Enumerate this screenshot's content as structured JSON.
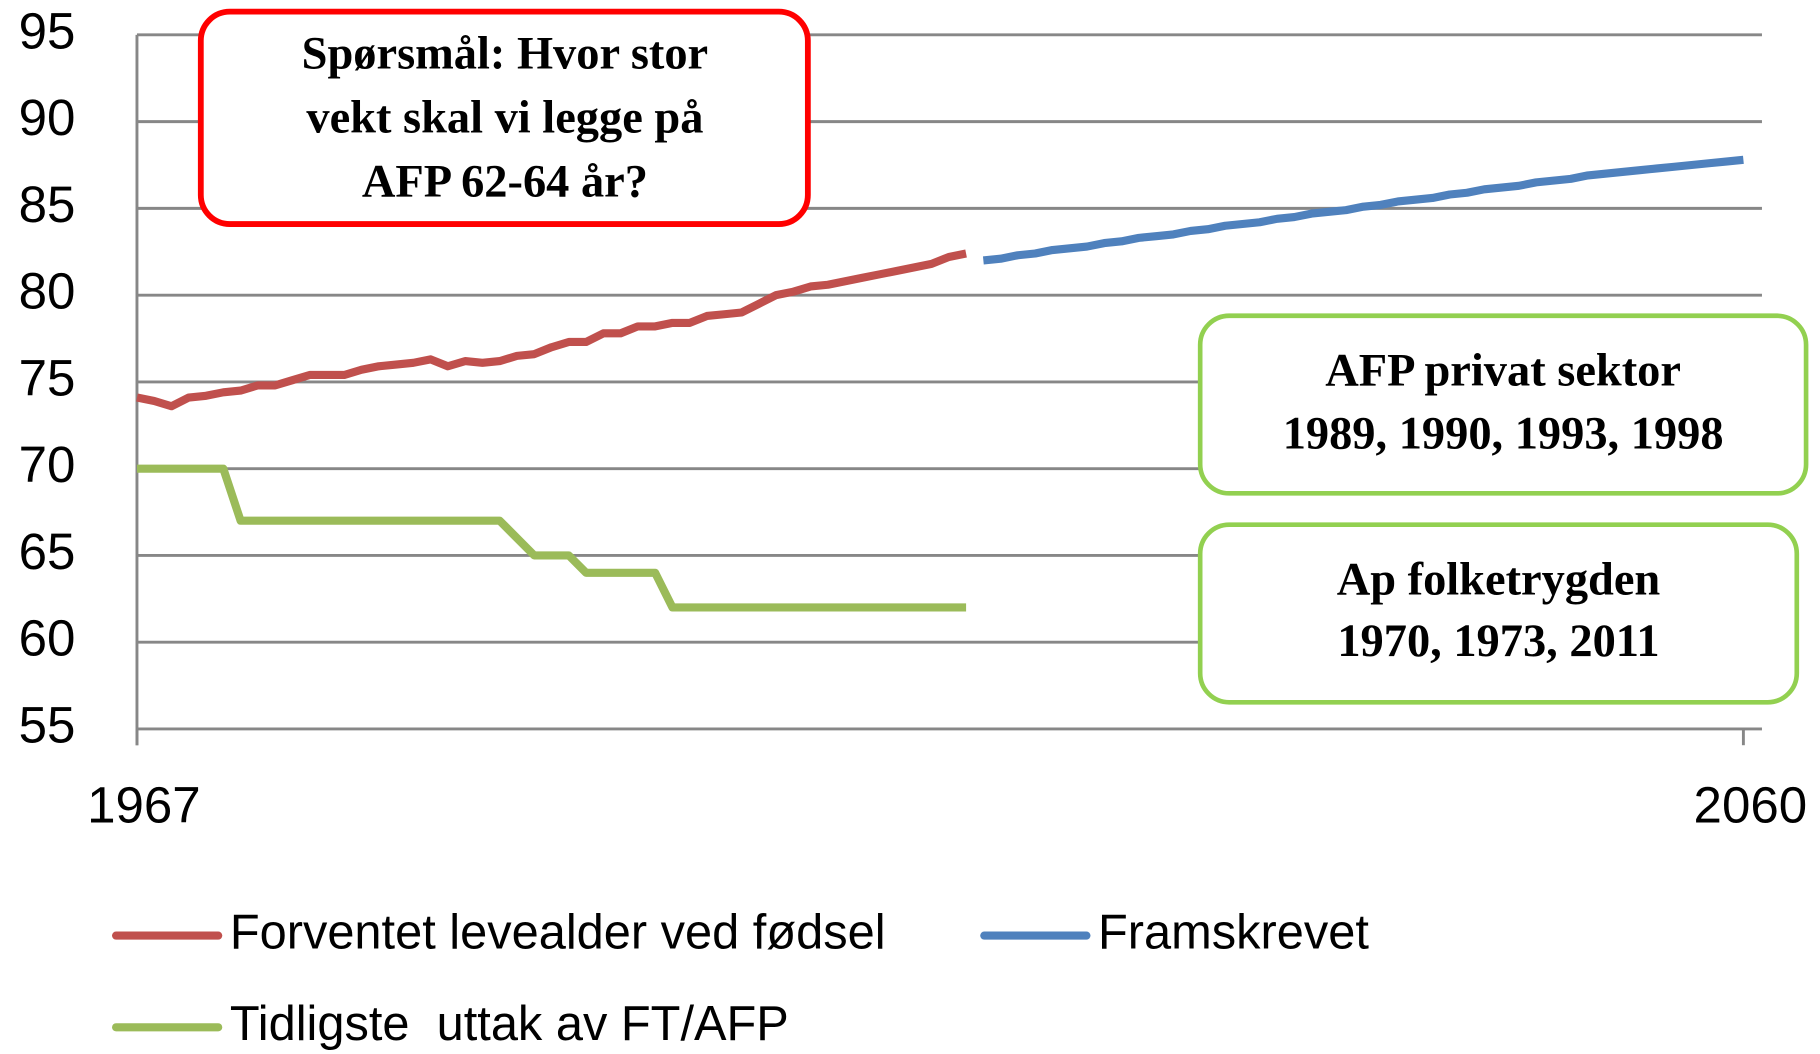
{
  "chart_data": {
    "type": "line",
    "xlim": [
      1967,
      2060
    ],
    "xticks": [
      1967,
      2060
    ],
    "ylim": [
      55,
      95
    ],
    "yticks": [
      55,
      60,
      65,
      70,
      75,
      80,
      85,
      90,
      95
    ],
    "grid": true,
    "legend": "bottom",
    "series": [
      {
        "name": "Forventet levealder ved fødsel",
        "color": "#c0504d",
        "x": [
          1967,
          1968,
          1969,
          1970,
          1971,
          1972,
          1973,
          1974,
          1975,
          1976,
          1977,
          1978,
          1979,
          1980,
          1981,
          1982,
          1983,
          1984,
          1985,
          1986,
          1987,
          1988,
          1989,
          1990,
          1991,
          1992,
          1993,
          1994,
          1995,
          1996,
          1997,
          1998,
          1999,
          2000,
          2001,
          2002,
          2003,
          2004,
          2005,
          2006,
          2007,
          2008,
          2009,
          2010,
          2011,
          2012,
          2013,
          2014,
          2015
        ],
        "values": [
          74.1,
          73.9,
          73.6,
          74.1,
          74.2,
          74.4,
          74.5,
          74.8,
          74.8,
          75.1,
          75.4,
          75.4,
          75.4,
          75.7,
          75.9,
          76.0,
          76.1,
          76.3,
          75.9,
          76.2,
          76.1,
          76.2,
          76.5,
          76.6,
          77.0,
          77.3,
          77.3,
          77.8,
          77.8,
          78.2,
          78.2,
          78.4,
          78.4,
          78.8,
          78.9,
          79.0,
          79.5,
          80.0,
          80.2,
          80.5,
          80.6,
          80.8,
          81.0,
          81.2,
          81.4,
          81.6,
          81.8,
          82.2,
          82.4
        ]
      },
      {
        "name": "Framskrevet",
        "color": "#4f81bd",
        "x": [
          2016,
          2017,
          2018,
          2019,
          2020,
          2021,
          2022,
          2023,
          2024,
          2025,
          2026,
          2027,
          2028,
          2029,
          2030,
          2031,
          2032,
          2033,
          2034,
          2035,
          2036,
          2037,
          2038,
          2039,
          2040,
          2041,
          2042,
          2043,
          2044,
          2045,
          2046,
          2047,
          2048,
          2049,
          2050,
          2051,
          2052,
          2053,
          2054,
          2055,
          2056,
          2057,
          2058,
          2059,
          2060
        ],
        "values": [
          82.0,
          82.1,
          82.3,
          82.4,
          82.6,
          82.7,
          82.8,
          83.0,
          83.1,
          83.3,
          83.4,
          83.5,
          83.7,
          83.8,
          84.0,
          84.1,
          84.2,
          84.4,
          84.5,
          84.7,
          84.8,
          84.9,
          85.1,
          85.2,
          85.4,
          85.5,
          85.6,
          85.8,
          85.9,
          86.1,
          86.2,
          86.3,
          86.5,
          86.6,
          86.7,
          86.9,
          87.0,
          87.1,
          87.2,
          87.3,
          87.4,
          87.5,
          87.6,
          87.7,
          87.8
        ]
      },
      {
        "name": "Tidligste  uttak av FT/AFP",
        "color": "#9bbb59",
        "x": [
          1967,
          1972,
          1973,
          1988,
          1990,
          1992,
          1993,
          1997,
          1998,
          2015
        ],
        "values": [
          70,
          70,
          67,
          67,
          65,
          65,
          64,
          64,
          62,
          62
        ]
      }
    ],
    "annotations": [
      {
        "lines": [
          "Spørsmål: Hvor stor",
          "vekt skal vi legge på",
          "AFP 62-64 år?"
        ],
        "color": "#ff0000"
      },
      {
        "lines": [
          "AFP privat sektor",
          "1989, 1990, 1993, 1998"
        ],
        "color": "#92d050"
      },
      {
        "lines": [
          "Ap folketrygden",
          "1970, 1973, 2011"
        ],
        "color": "#92d050"
      }
    ]
  }
}
